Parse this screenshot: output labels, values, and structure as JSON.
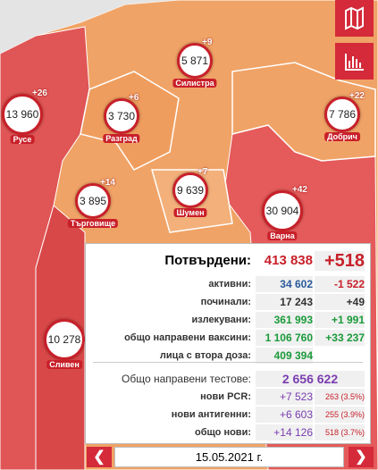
{
  "regions": [
    {
      "name": "Силистра",
      "count": "5 871",
      "delta": "+9"
    },
    {
      "name": "Русе",
      "count": "13 960",
      "delta": "+26"
    },
    {
      "name": "Разград",
      "count": "3 730",
      "delta": "+6"
    },
    {
      "name": "Добрич",
      "count": "7 786",
      "delta": "+22"
    },
    {
      "name": "Търговище",
      "count": "3 895",
      "delta": "+14"
    },
    {
      "name": "Шумен",
      "count": "9 639",
      "delta": "+7"
    },
    {
      "name": "Варна",
      "count": "30 904",
      "delta": "+42"
    },
    {
      "name": "Сливен",
      "count": "10 278"
    }
  ],
  "panel": {
    "title": "Потвърдени:",
    "total": "413 838",
    "delta": "+518",
    "rows": [
      [
        "активни:",
        "34 602",
        "-1 522"
      ],
      [
        "починали:",
        "17 243",
        "+49"
      ],
      [
        "излекувани:",
        "361 993",
        "+1 991"
      ],
      [
        "общо направени ваксини:",
        "1 106 760",
        "+33 237"
      ],
      [
        "лица с втора доза:",
        "409 394"
      ]
    ],
    "tests_label": "Общо направени тестове:",
    "tests_total": "2 656 622",
    "tests": [
      [
        "нови PCR:",
        "+7 523",
        "263 (3.5%)"
      ],
      [
        "нови антигенни:",
        "+6 603",
        "255 (3.9%)"
      ],
      [
        "общо нови:",
        "+14 126",
        "518 (3.7%)"
      ]
    ]
  },
  "date": "15.05.2021 г."
}
